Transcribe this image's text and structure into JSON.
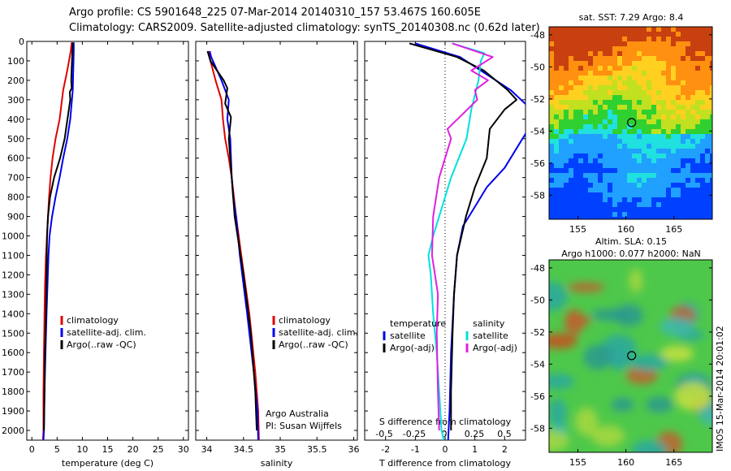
{
  "header": {
    "line1": "Argo profile: CS 5901648_225 07-Mar-2014 20140310_157 53.467S 160.605E",
    "line2": "Climatology: CARS2009. Satellite-adjusted climatology: synTS_20140308.nc (0.62d later)"
  },
  "colors": {
    "climatology": "#e00000",
    "satellite": "#0000ee",
    "argo": "#000000",
    "sal_satellite": "#00e0e0",
    "sal_argo": "#e020e0"
  },
  "chart_data": [
    {
      "type": "line",
      "panel": "temperature",
      "xlabel": "temperature (deg C)",
      "ylim": [
        0,
        2050
      ],
      "xlim": [
        -1,
        31
      ],
      "yticks": [
        "0",
        "100",
        "200",
        "300",
        "400",
        "500",
        "600",
        "700",
        "800",
        "900",
        "1000",
        "1100",
        "1200",
        "1300",
        "1400",
        "1500",
        "1600",
        "1700",
        "1800",
        "1900",
        "2000"
      ],
      "xticks": [
        "0",
        "5",
        "10",
        "15",
        "20",
        "25",
        "30"
      ],
      "legend": [
        "climatology",
        "satellite-adj. clim.",
        "Argo(..raw -QC)"
      ],
      "legend_position": "lower-right",
      "series": [
        {
          "name": "climatology",
          "x": [
            7.9,
            7.7,
            7.0,
            6.2,
            5.5,
            4.7,
            4.1,
            3.7,
            3.4,
            3.2,
            3.0,
            2.8,
            2.6,
            2.5,
            2.4,
            2.3,
            2.3,
            2.2
          ],
          "y": [
            5,
            50,
            150,
            250,
            400,
            500,
            600,
            700,
            800,
            900,
            1000,
            1100,
            1250,
            1400,
            1600,
            1800,
            2000,
            2050
          ]
        },
        {
          "name": "satellite-adj. clim.",
          "x": [
            8.3,
            8.3,
            8.2,
            8.1,
            7.6,
            7.0,
            6.2,
            5.5,
            4.7,
            4.0,
            3.5,
            3.3,
            3.1,
            2.9,
            2.7,
            2.5,
            2.4,
            2.3
          ],
          "y": [
            5,
            50,
            150,
            250,
            400,
            500,
            600,
            700,
            800,
            900,
            1000,
            1100,
            1250,
            1400,
            1600,
            1800,
            2000,
            2050
          ]
        },
        {
          "name": "Argo(..raw -QC)",
          "x": [
            8.1,
            8.0,
            7.8,
            7.9,
            7.5,
            7.6,
            6.5,
            5.6,
            4.4,
            3.6,
            3.2,
            3.0,
            2.9,
            2.8,
            2.6,
            2.5,
            2.4
          ],
          "y": [
            5,
            60,
            200,
            240,
            260,
            300,
            500,
            600,
            700,
            800,
            900,
            1000,
            1200,
            1400,
            1600,
            1800,
            2000
          ]
        }
      ]
    },
    {
      "type": "line",
      "panel": "salinity",
      "xlabel": "salinity",
      "ylim": [
        0,
        2050
      ],
      "xlim": [
        33.85,
        36.05
      ],
      "xticks": [
        "34",
        "34.5",
        "35",
        "35.5",
        "36"
      ],
      "legend": [
        "climatology",
        "satellite-adj. clim.",
        "Argo(..raw -QC)"
      ],
      "legend_position": "lower-right",
      "annotation": [
        "Argo Australia",
        "PI: Susan Wijffels"
      ],
      "series": [
        {
          "name": "climatology",
          "x": [
            34.02,
            34.05,
            34.12,
            34.2,
            34.22,
            34.25,
            34.3,
            34.34,
            34.37,
            34.4,
            34.47,
            34.58,
            34.66,
            34.7,
            34.71
          ],
          "y": [
            50,
            100,
            200,
            300,
            400,
            500,
            600,
            700,
            800,
            900,
            1100,
            1400,
            1700,
            1900,
            2050
          ]
        },
        {
          "name": "satellite-adj. clim.",
          "x": [
            34.04,
            34.06,
            34.2,
            34.3,
            34.28,
            34.32,
            34.33,
            34.34,
            34.36,
            34.4,
            34.45,
            34.55,
            34.64,
            34.69,
            34.7
          ],
          "y": [
            50,
            80,
            200,
            300,
            400,
            500,
            600,
            700,
            800,
            900,
            1100,
            1400,
            1700,
            1900,
            2050
          ]
        },
        {
          "name": "Argo(..raw -QC)",
          "x": [
            34.01,
            34.05,
            34.23,
            34.28,
            34.25,
            34.33,
            34.3,
            34.32,
            34.34,
            34.38,
            34.5,
            34.6,
            34.66,
            34.68
          ],
          "y": [
            50,
            100,
            200,
            240,
            320,
            390,
            500,
            600,
            700,
            900,
            1200,
            1500,
            1800,
            2000
          ]
        }
      ]
    },
    {
      "type": "line",
      "panel": "difference",
      "xlabel": "T difference from climatology",
      "xlabel_top": "S difference from climatology",
      "ylim": [
        0,
        2050
      ],
      "xlim": [
        -2.7,
        2.7
      ],
      "xticks": [
        "-2",
        "-1",
        "0",
        "1",
        "2"
      ],
      "xticks_S": [
        "-0.5",
        "-0.25",
        "0",
        "0.25",
        "0.5"
      ],
      "legend_headers": [
        "temperature",
        "salinity"
      ],
      "legend": [
        "satellite",
        "Argo(-adj)",
        "satellite",
        "Argo(-adj)"
      ],
      "legend_position": "lower-right",
      "series": [
        {
          "name": "temperature satellite",
          "x": [
            -1.0,
            0.5,
            1.2,
            2.2,
            2.9,
            2.8,
            2.4,
            2.0,
            1.4,
            1.0,
            0.6,
            0.4,
            0.3,
            0.2,
            0.15,
            0.1
          ],
          "y": [
            10,
            80,
            150,
            250,
            350,
            450,
            550,
            650,
            750,
            850,
            950,
            1100,
            1300,
            1600,
            1900,
            2050
          ]
        },
        {
          "name": "temperature Argo(-adj)",
          "x": [
            -1.2,
            0.4,
            1.3,
            2.1,
            2.4,
            2.0,
            1.5,
            1.4,
            1.0,
            0.7,
            0.4,
            0.3,
            0.25,
            0.2,
            0.2
          ],
          "y": [
            10,
            80,
            150,
            250,
            300,
            350,
            450,
            600,
            750,
            900,
            1100,
            1300,
            1500,
            1800,
            2000
          ]
        },
        {
          "name": "salinity satellite",
          "x": [
            0.06,
            0.33,
            0.3,
            0.28,
            0.22,
            0.18,
            0.05,
            -0.05,
            -0.1,
            -0.14,
            -0.12,
            -0.1,
            -0.07,
            -0.05,
            -0.03,
            -0.01
          ],
          "y": [
            10,
            60,
            100,
            200,
            350,
            500,
            700,
            900,
            1000,
            1100,
            1200,
            1400,
            1600,
            1800,
            2000,
            2050
          ]
        },
        {
          "name": "salinity Argo(-adj)",
          "x": [
            0.06,
            0.4,
            0.22,
            0.36,
            0.25,
            0.27,
            0.02,
            0.05,
            -0.05,
            -0.1,
            -0.11,
            -0.06,
            -0.07,
            -0.06,
            -0.05
          ],
          "y": [
            10,
            80,
            150,
            200,
            250,
            300,
            450,
            500,
            700,
            900,
            1100,
            1300,
            1500,
            1800,
            2000
          ]
        }
      ]
    },
    {
      "type": "heatmap",
      "panel": "sst-map",
      "title": "sat. SST: 7.29 Argo: 8.4",
      "xticks": [
        "155",
        "160",
        "165"
      ],
      "yticks": [
        "-48",
        "-50",
        "-52",
        "-54",
        "-56",
        "-58"
      ],
      "xlim": [
        152,
        169
      ],
      "ylim": [
        -59.5,
        -47.5
      ],
      "marker": {
        "lon": 160.6,
        "lat": -53.47
      }
    },
    {
      "type": "heatmap",
      "panel": "sla-map",
      "title": "Altim. SLA: 0.15",
      "subtitle": "Argo h1000: 0.077 h2000: NaN",
      "xticks": [
        "155",
        "160",
        "165"
      ],
      "yticks": [
        "-48",
        "-50",
        "-52",
        "-54",
        "-56",
        "-58"
      ],
      "xlim": [
        152,
        169
      ],
      "ylim": [
        -59.5,
        -47.5
      ],
      "marker": {
        "lon": 160.6,
        "lat": -53.47
      },
      "side_label": "IMOS 15-Mar-2014 20:01:02"
    }
  ]
}
